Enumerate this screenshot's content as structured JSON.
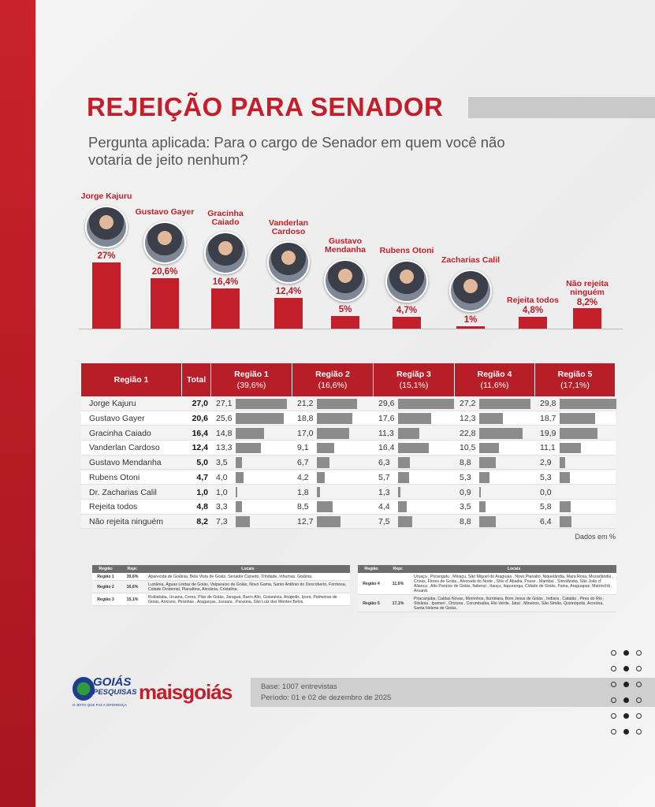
{
  "header": {
    "title": "REJEIÇÃO PARA SENADOR",
    "question": "Pergunta aplicada: Para o cargo de Senador em quem você não votaria de jeito nenhum?"
  },
  "chart_data": {
    "type": "bar",
    "categories": [
      "Jorge Kajuru",
      "Gustavo Gayer",
      "Gracinha Caiado",
      "Vanderlan Cardoso",
      "Gustavo Mendanha",
      "Rubens Otoni",
      "Zacharias Calil",
      "Rejeita todos",
      "Não rejeita ninguém"
    ],
    "values": [
      27,
      20.6,
      16.4,
      12.4,
      5,
      4.7,
      1,
      4.8,
      8.2
    ],
    "value_labels": [
      "27%",
      "20,6%",
      "16,4%",
      "12,4%",
      "5%",
      "4,7%",
      "1%",
      "4,8%",
      "8,2%"
    ],
    "photos": [
      true,
      true,
      true,
      true,
      true,
      true,
      true,
      false,
      false
    ],
    "color": "#c21f2a"
  },
  "table": {
    "headers": [
      "Região 1",
      "Total",
      "Região 1",
      "Região 2",
      "Regiãp 3",
      "Região 4",
      "Região 5"
    ],
    "region_shares": [
      "(39,6%)",
      "(16,6%)",
      "(15,1%)",
      "(11,6%)",
      "(17,1%)"
    ],
    "bar_color": "#8c8c8c",
    "rows": [
      {
        "name": "Jorge Kajuru",
        "total": 27.0,
        "total_label": "27,0",
        "values": [
          27.1,
          21.2,
          29.6,
          27.2,
          29.8
        ],
        "value_labels": [
          "27,1",
          "21,2",
          "29,6",
          "27,2",
          "29,8"
        ]
      },
      {
        "name": "Gustavo Gayer",
        "total": 20.6,
        "total_label": "20,6",
        "values": [
          25.6,
          18.8,
          17.6,
          12.3,
          18.7
        ],
        "value_labels": [
          "25,6",
          "18,8",
          "17,6",
          "12,3",
          "18,7"
        ]
      },
      {
        "name": "Gracinha Caiado",
        "total": 16.4,
        "total_label": "16,4",
        "values": [
          14.8,
          17.0,
          11.3,
          22.8,
          19.9
        ],
        "value_labels": [
          "14,8",
          "17,0",
          "11,3",
          "22,8",
          "19,9"
        ]
      },
      {
        "name": "Vanderlan Cardoso",
        "total": 12.4,
        "total_label": "12,4",
        "values": [
          13.3,
          9.1,
          16.4,
          10.5,
          11.1
        ],
        "value_labels": [
          "13,3",
          "9,1",
          "16,4",
          "10,5",
          "11,1"
        ]
      },
      {
        "name": "Gustavo Mendanha",
        "total": 5.0,
        "total_label": "5,0",
        "values": [
          3.5,
          6.7,
          6.3,
          8.8,
          2.9
        ],
        "value_labels": [
          "3,5",
          "6,7",
          "6,3",
          "8,8",
          "2,9"
        ]
      },
      {
        "name": "Rubens Otoni",
        "total": 4.7,
        "total_label": "4,7",
        "values": [
          4.0,
          4.2,
          5.7,
          5.3,
          5.3
        ],
        "value_labels": [
          "4,0",
          "4,2",
          "5,7",
          "5,3",
          "5,3"
        ]
      },
      {
        "name": "Dr. Zacharias Calil",
        "total": 1.0,
        "total_label": "1,0",
        "values": [
          1.0,
          1.8,
          1.3,
          0.9,
          0.0
        ],
        "value_labels": [
          "1,0",
          "1,8",
          "1,3",
          "0,9",
          "0,0"
        ]
      },
      {
        "name": "Rejeita todos",
        "total": 4.8,
        "total_label": "4,8",
        "values": [
          3.3,
          8.5,
          4.4,
          3.5,
          5.8
        ],
        "value_labels": [
          "3,3",
          "8,5",
          "4,4",
          "3,5",
          "5,8"
        ]
      },
      {
        "name": "Não rejeita ninguém",
        "total": 8.2,
        "total_label": "8,2",
        "values": [
          7.3,
          12.7,
          7.5,
          8.8,
          6.4
        ],
        "value_labels": [
          "7,3",
          "12,7",
          "7,5",
          "8,8",
          "6,4"
        ]
      }
    ],
    "note": "Dados em %"
  },
  "locais_tables": [
    {
      "headers": [
        "Região",
        "Repr.",
        "Locais"
      ],
      "rows": [
        [
          "Região 1",
          "39,6%",
          "Aparecida de Goiânia, Bela Vista de Goiás, Senador Canedo, Trindade, Inhumas, Goiânia."
        ],
        [
          "Região 2",
          "16,6%",
          "Luziânia, Águas Lindas de Goiás, Valparaíso de Goiás, Novo Gama, Santo Antônio do Descoberto, Formosa, Cidade Ocidental, Planaltina, Alexânia, Cristalina."
        ],
        [
          "Região 3",
          "15,1%",
          "Rubiataba, Uruana, Ceres, Pilar de Goiás, Jaraguá, Barro Alto, Goianésia, Anápolis, Iporá, Palmeiras de Goiás, Anicuns, Piranhas , Aragarças, Jussara , Paraúna, São Luiz dos Montes Belos."
        ]
      ]
    },
    {
      "headers": [
        "Região",
        "Repr.",
        "Locais"
      ],
      "rows": [
        [
          "Região 4",
          "11,6%",
          "Uruaçu , Porangatu , Minaçu, São Miguel do Araguaia , Novo Planalto, Niquelândia, Mara Rosa, Mozarlândia , Crixás, Flores de Goiás , Alvorada do Norte , Sítio d' Abadia, Posse , Mambaí , Simolândia, São João d' Aliança , Alto Paraíso de Goiás, Itaberaí , Itauçu, Itapuranga, Cidade de Goiás, Faina, Araguapaz, Matrinchã , Aruanã."
        ],
        [
          "Região 5",
          "17,1%",
          "Piracanjuba, Caldas Novas, Morrinhos, Itumbiara, Bom Jesus de Goiás , Indiara , Catalão , Pires do Rio , Silvânia , Ipameri , Orizona , Corumbaíba, Rio Verde, Jataí , Mineiros, São Simão, Quirinópolis, Acreúna, Santa Helena de Goiás."
        ]
      ]
    }
  ],
  "footer": {
    "logo_top": "GOIÁS",
    "logo_bottom": "PESQUISAS",
    "logo_tagline": "O JEITO QUE FAZ A DIFERENÇA",
    "brand": "maisgoiás",
    "base": "Base: 1007 entrevistas",
    "period": "Período: 01 e 02 de dezembro de 2025"
  }
}
